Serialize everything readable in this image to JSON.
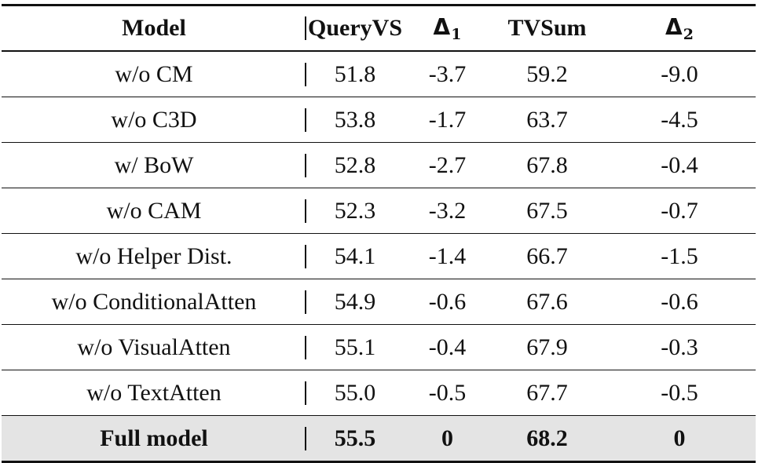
{
  "table": {
    "headers": {
      "model": "Model",
      "queryvs": "QueryVS",
      "delta1_symbol": "Δ",
      "delta1_sub": "1",
      "tvsum": "TVSum",
      "delta2_symbol": "Δ",
      "delta2_sub": "2"
    },
    "rows": [
      {
        "model": "w/o CM",
        "queryvs": "51.8",
        "delta1": "-3.7",
        "tvsum": "59.2",
        "delta2": "-9.0"
      },
      {
        "model": "w/o C3D",
        "queryvs": "53.8",
        "delta1": "-1.7",
        "tvsum": "63.7",
        "delta2": "-4.5"
      },
      {
        "model": "w/ BoW",
        "queryvs": "52.8",
        "delta1": "-2.7",
        "tvsum": "67.8",
        "delta2": "-0.4"
      },
      {
        "model": "w/o CAM",
        "queryvs": "52.3",
        "delta1": "-3.2",
        "tvsum": "67.5",
        "delta2": "-0.7"
      },
      {
        "model": "w/o Helper Dist.",
        "queryvs": "54.1",
        "delta1": "-1.4",
        "tvsum": "66.7",
        "delta2": "-1.5"
      },
      {
        "model": "w/o ConditionalAtten",
        "queryvs": "54.9",
        "delta1": "-0.6",
        "tvsum": "67.6",
        "delta2": "-0.6"
      },
      {
        "model": "w/o VisualAtten",
        "queryvs": "55.1",
        "delta1": "-0.4",
        "tvsum": "67.9",
        "delta2": "-0.3"
      },
      {
        "model": "w/o TextAtten",
        "queryvs": "55.0",
        "delta1": "-0.5",
        "tvsum": "67.7",
        "delta2": "-0.5"
      },
      {
        "model": "Full model",
        "queryvs": "55.5",
        "delta1": "0",
        "tvsum": "68.2",
        "delta2": "0"
      }
    ],
    "highlight_color": "#e4e4e4"
  }
}
